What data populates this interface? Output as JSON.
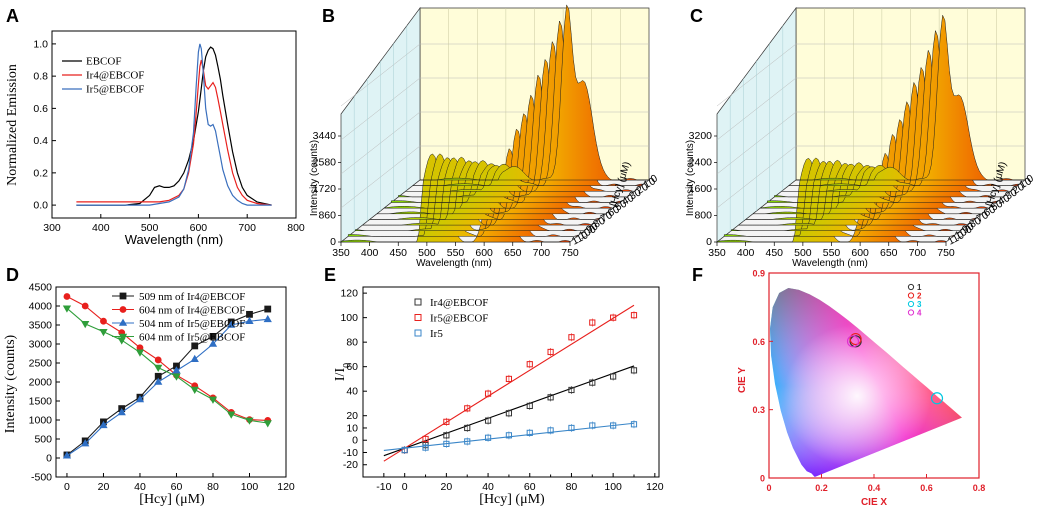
{
  "chart_data": [
    {
      "panel": "A",
      "type": "line",
      "xlabel": "Wavelength (nm)",
      "ylabel": "Normalized Emission",
      "xlim": [
        300,
        800
      ],
      "ylim": [
        -0.08,
        1.08
      ],
      "xticks": [
        "300",
        "400",
        "500",
        "600",
        "700",
        "800"
      ],
      "yticks": [
        "0.0",
        "0.2",
        "0.4",
        "0.6",
        "0.8",
        "1.0"
      ],
      "legend": "top-left",
      "series": [
        {
          "name": "EBCOF",
          "color": "#000000",
          "x": [
            350,
            400,
            450,
            480,
            500,
            510,
            520,
            530,
            540,
            550,
            560,
            570,
            580,
            590,
            600,
            605,
            610,
            615,
            620,
            625,
            630,
            635,
            640,
            645,
            650,
            660,
            670,
            680,
            690,
            700,
            720,
            750
          ],
          "y": [
            0.0,
            0.0,
            0.0,
            0.01,
            0.06,
            0.11,
            0.12,
            0.11,
            0.11,
            0.12,
            0.15,
            0.2,
            0.28,
            0.4,
            0.58,
            0.7,
            0.83,
            0.92,
            0.96,
            0.98,
            0.97,
            0.93,
            0.86,
            0.78,
            0.68,
            0.5,
            0.33,
            0.2,
            0.11,
            0.06,
            0.02,
            0.0
          ]
        },
        {
          "name": "Ir4@EBCOF",
          "color": "#e8201d",
          "x": [
            350,
            400,
            450,
            480,
            500,
            520,
            540,
            560,
            570,
            580,
            590,
            595,
            600,
            603,
            606,
            610,
            615,
            620,
            625,
            630,
            635,
            640,
            645,
            650,
            660,
            670,
            680,
            690,
            700,
            720,
            750
          ],
          "y": [
            0.02,
            0.02,
            0.02,
            0.02,
            0.02,
            0.02,
            0.03,
            0.06,
            0.1,
            0.2,
            0.38,
            0.56,
            0.75,
            0.86,
            0.9,
            0.84,
            0.74,
            0.72,
            0.74,
            0.76,
            0.73,
            0.66,
            0.58,
            0.5,
            0.34,
            0.2,
            0.11,
            0.06,
            0.03,
            0.01,
            0.0
          ]
        },
        {
          "name": "Ir5@EBCOF",
          "color": "#3a6fbd",
          "x": [
            350,
            400,
            450,
            480,
            500,
            520,
            540,
            560,
            570,
            580,
            590,
            595,
            600,
            603,
            606,
            610,
            615,
            620,
            625,
            630,
            635,
            640,
            645,
            650,
            660,
            670,
            680,
            690,
            700,
            720,
            750
          ],
          "y": [
            0.0,
            0.0,
            0.0,
            0.0,
            0.0,
            0.01,
            0.02,
            0.05,
            0.1,
            0.22,
            0.45,
            0.72,
            0.95,
            1.0,
            0.97,
            0.82,
            0.6,
            0.5,
            0.49,
            0.5,
            0.46,
            0.38,
            0.3,
            0.22,
            0.12,
            0.06,
            0.03,
            0.01,
            0.0,
            0.0,
            0.0
          ]
        }
      ]
    },
    {
      "panel": "B",
      "type": "area",
      "xlabel": "Wavelength (nm)",
      "ylabel": "Intensity (counts)",
      "zlabel": "[Hcy] (μM)",
      "xticks": [
        "350",
        "400",
        "450",
        "500",
        "550",
        "600",
        "650",
        "700",
        "750"
      ],
      "yticks": [
        "0",
        "860",
        "1720",
        "2580",
        "3440"
      ],
      "zticks": [
        "0",
        "10",
        "20",
        "30",
        "40",
        "50",
        "60",
        "70",
        "80",
        "90",
        "100",
        "110"
      ]
    },
    {
      "panel": "C",
      "type": "area",
      "xlabel": "Wavelength (nm)",
      "ylabel": "Intensity (counts)",
      "zlabel": "[Hcy] (μM)",
      "xticks": [
        "350",
        "400",
        "450",
        "500",
        "550",
        "600",
        "650",
        "700",
        "750"
      ],
      "yticks": [
        "0",
        "800",
        "1600",
        "2400",
        "3200"
      ],
      "zticks": [
        "0",
        "10",
        "20",
        "30",
        "40",
        "50",
        "60",
        "70",
        "80",
        "90",
        "100",
        "110"
      ]
    },
    {
      "panel": "D",
      "type": "line",
      "xlabel": "[Hcy] (μM)",
      "ylabel": "Intensity (counts)",
      "xlim": [
        -6,
        120
      ],
      "ylim": [
        -500,
        4500
      ],
      "xticks": [
        "0",
        "20",
        "40",
        "60",
        "80",
        "100",
        "120"
      ],
      "yticks": [
        "-500",
        "0",
        "500",
        "1000",
        "1500",
        "2000",
        "2500",
        "3000",
        "3500",
        "4000",
        "4500"
      ],
      "legend": "top-center",
      "x": [
        0,
        10,
        20,
        30,
        40,
        50,
        60,
        70,
        80,
        90,
        100,
        110
      ],
      "series": [
        {
          "name": "509 nm of Ir4@EBCOF",
          "color": "#1a1a1a",
          "marker": "square",
          "values": [
            80,
            450,
            950,
            1300,
            1600,
            2150,
            2420,
            2950,
            3200,
            3580,
            3780,
            3920
          ]
        },
        {
          "name": "604 nm of Ir4@EBCOF",
          "color": "#e8201d",
          "marker": "circle",
          "values": [
            4250,
            4000,
            3600,
            3300,
            2900,
            2580,
            2180,
            1900,
            1580,
            1200,
            1010,
            990
          ]
        },
        {
          "name": "504 nm of Ir5@EBCOF",
          "color": "#2f6fc4",
          "marker": "triangle-up",
          "values": [
            60,
            380,
            860,
            1200,
            1540,
            2000,
            2300,
            2600,
            3000,
            3500,
            3600,
            3650
          ]
        },
        {
          "name": "604 nm of Ir5@EBCOF",
          "color": "#2f9e3a",
          "marker": "triangle-down",
          "values": [
            3940,
            3530,
            3320,
            3100,
            2780,
            2380,
            2150,
            1800,
            1540,
            1150,
            990,
            920
          ]
        }
      ]
    },
    {
      "panel": "E",
      "type": "scatter",
      "xlabel": "[Hcy] (μM)",
      "ylabel": "I/I0",
      "xlim": [
        -20,
        122
      ],
      "ylim": [
        -30,
        125
      ],
      "xticks": [
        "-10",
        "0",
        "10",
        "20",
        "30",
        "40",
        "50",
        "60",
        "70",
        "80",
        "90",
        "100",
        "110",
        "120"
      ],
      "xticks_labeled": [
        "-10",
        "0",
        "20",
        "40",
        "60",
        "80",
        "100",
        "120"
      ],
      "yticks": [
        "-20",
        "-10",
        "0",
        "10",
        "20",
        "40",
        "60",
        "80",
        "100",
        "120"
      ],
      "legend": "top-left",
      "x": [
        0,
        10,
        20,
        30,
        40,
        50,
        60,
        70,
        80,
        90,
        100,
        110
      ],
      "series": [
        {
          "name": "Ir4@EBCOF",
          "color": "#333333",
          "marker": "open-square",
          "values": [
            -8,
            -4,
            4,
            10,
            16,
            22,
            28,
            35,
            41,
            47,
            52,
            57
          ],
          "fit": {
            "slope": 0.61,
            "intercept": -6.5
          }
        },
        {
          "name": "Ir5@EBCOF",
          "color": "#e8201d",
          "marker": "open-square",
          "values": [
            -8,
            1,
            15,
            26,
            38,
            50,
            62,
            72,
            84,
            96,
            100,
            102
          ],
          "fit": {
            "slope": 1.06,
            "intercept": -6.5
          }
        },
        {
          "name": "Ir5",
          "color": "#3a86c8",
          "marker": "open-square",
          "values": [
            -8,
            -6,
            -3,
            -1,
            2,
            4,
            6,
            8,
            10,
            12,
            12,
            13
          ],
          "fit": {
            "slope": 0.185,
            "intercept": -6.5
          }
        }
      ]
    },
    {
      "panel": "F",
      "type": "scatter",
      "xlabel": "CIE X",
      "ylabel": "CIE Y",
      "xlim": [
        0,
        0.8
      ],
      "ylim": [
        0,
        0.9
      ],
      "xticks": [
        "0",
        "0.2",
        "0.4",
        "0.6",
        "0.8"
      ],
      "yticks": [
        "0",
        "0.3",
        "0.6",
        "0.9"
      ],
      "legend": "top-right",
      "points": [
        {
          "label": "1",
          "color": "#333333",
          "x": 0.33,
          "y": 0.6
        },
        {
          "label": "2",
          "color": "#e8201d",
          "x": 0.33,
          "y": 0.61
        },
        {
          "label": "3",
          "color": "#00c8e0",
          "x": 0.64,
          "y": 0.35
        },
        {
          "label": "4",
          "color": "#e030d0",
          "x": 0.32,
          "y": 0.6
        }
      ]
    }
  ]
}
